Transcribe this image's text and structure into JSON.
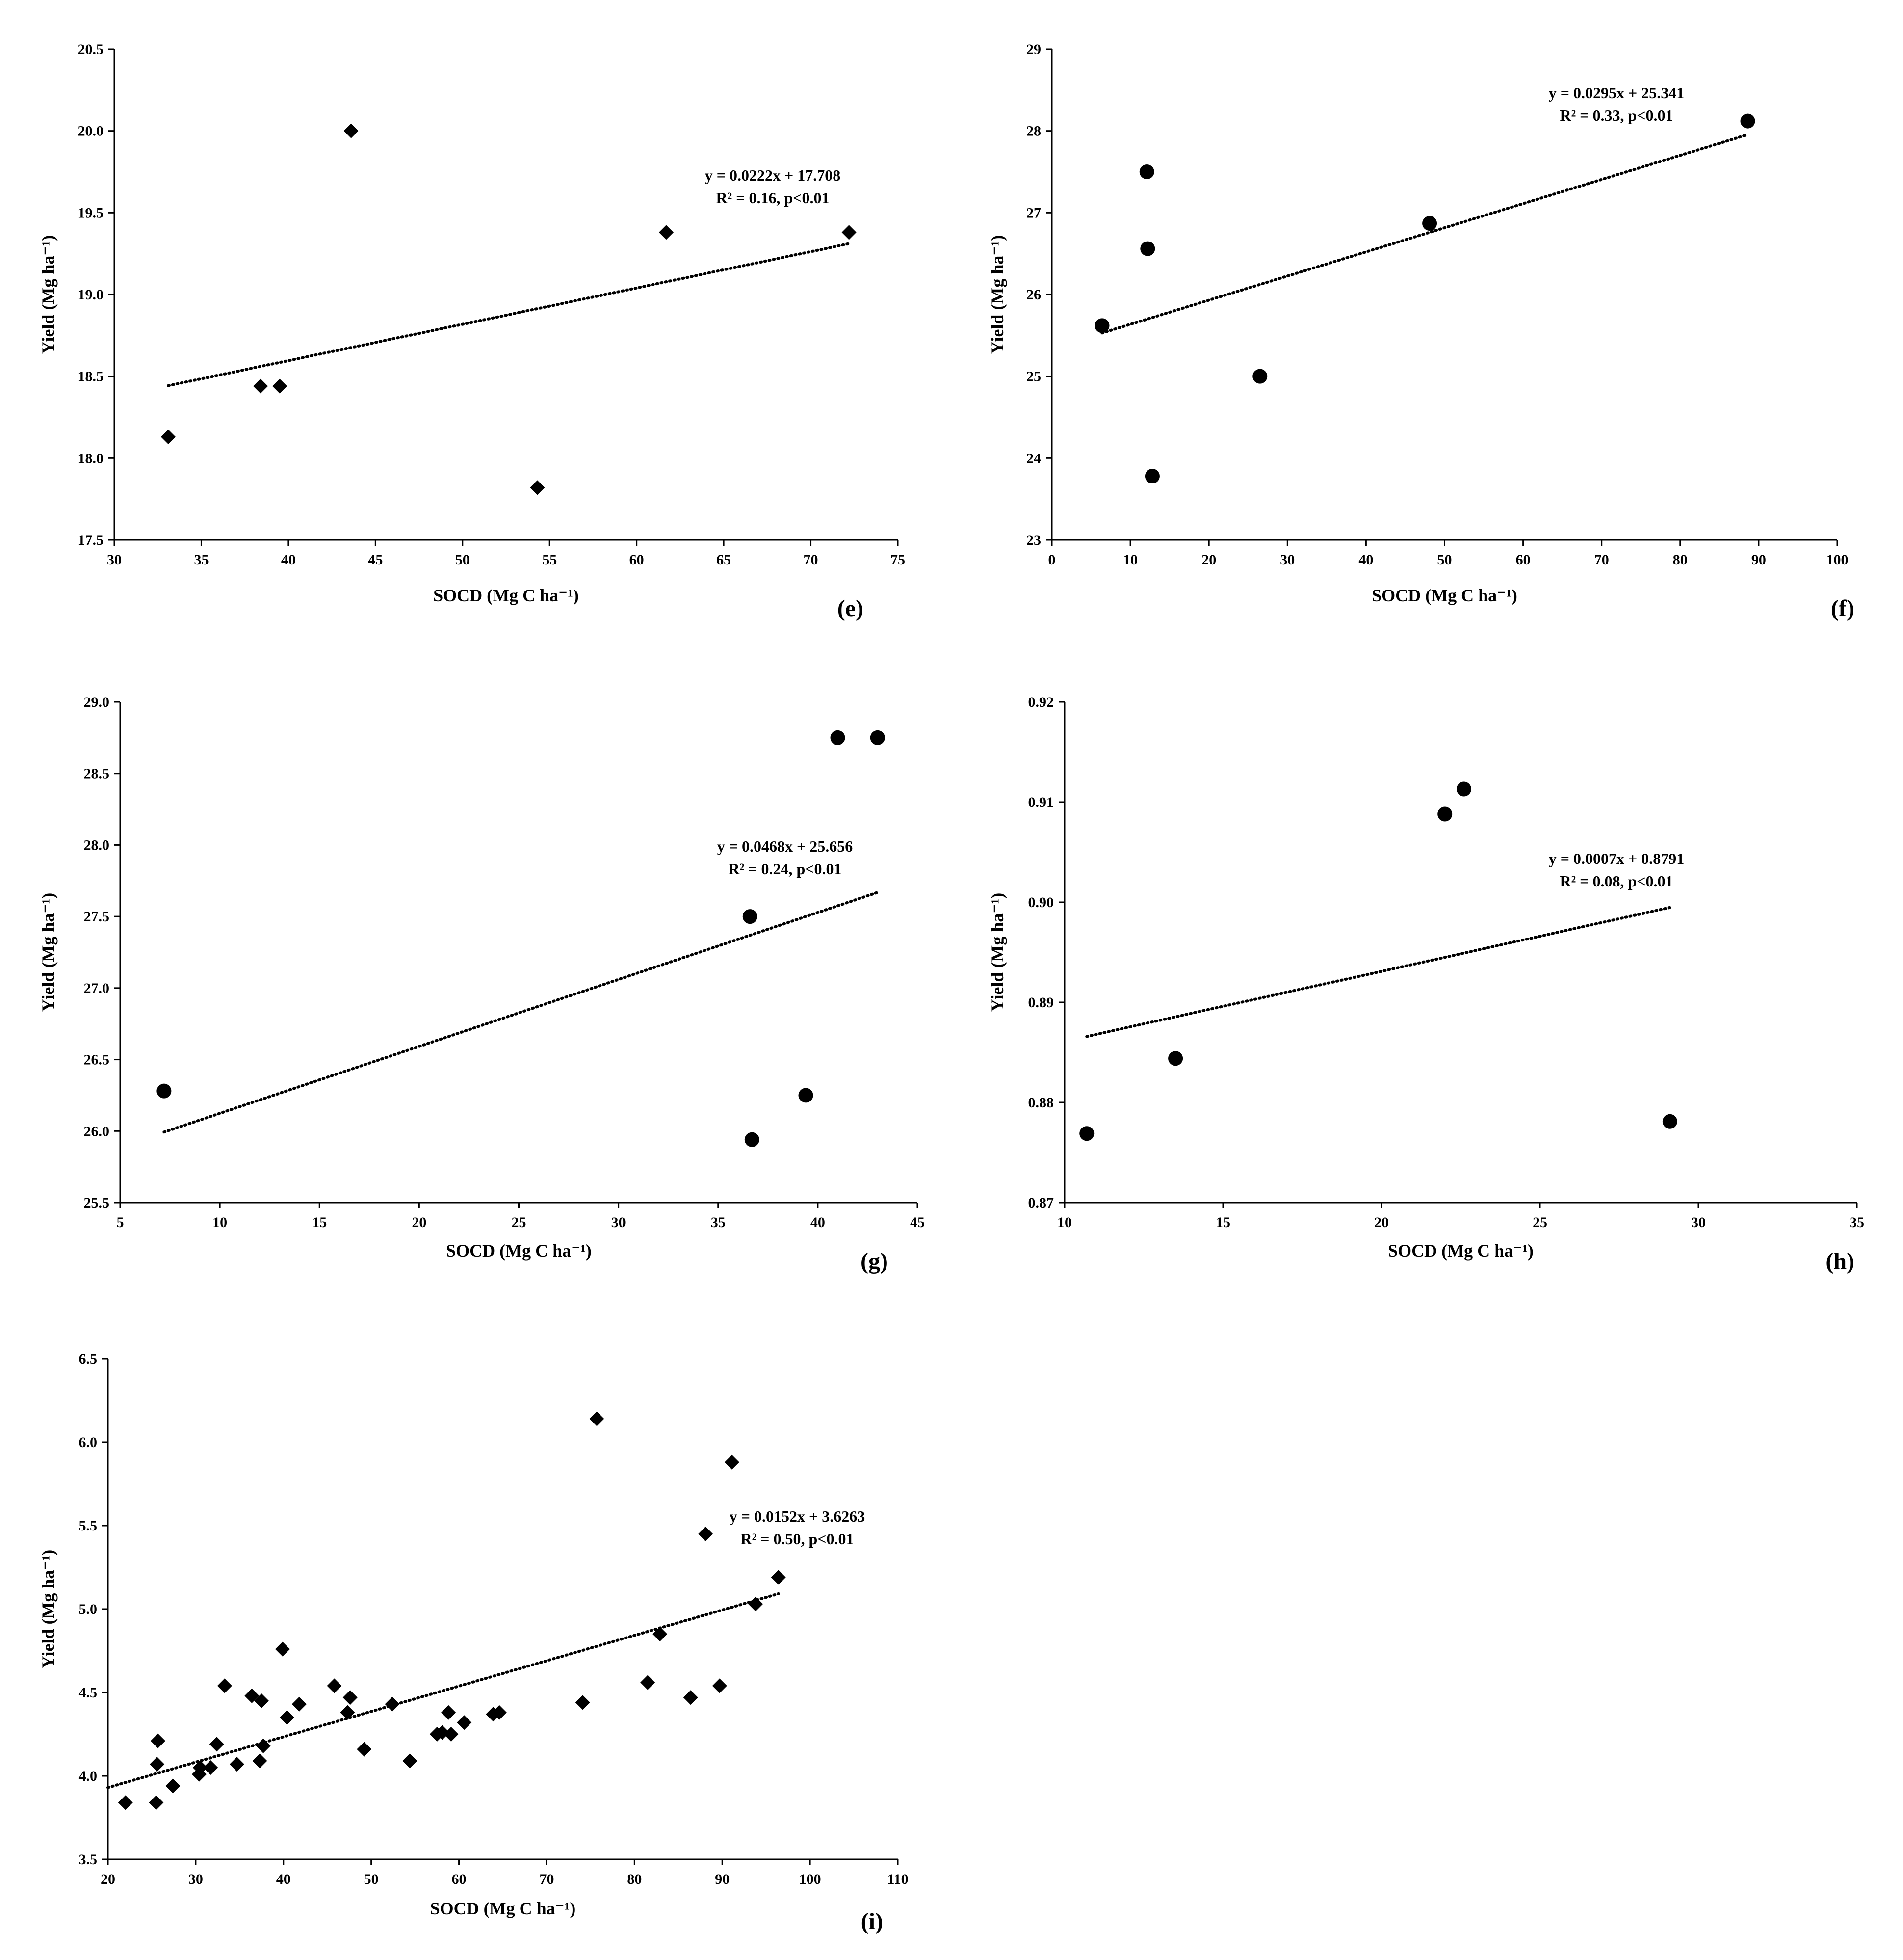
{
  "chart_data": [
    {
      "panel_label": "(e)",
      "type": "scatter",
      "marker": "diamond",
      "xlabel": "SOCD (Mg C ha⁻¹)",
      "ylabel": "Yield (Mg ha⁻¹)",
      "xlim": [
        30,
        75
      ],
      "ylim": [
        17.5,
        20.5
      ],
      "xticks": [
        30,
        35,
        40,
        45,
        50,
        55,
        60,
        65,
        70,
        75
      ],
      "yticks": [
        17.5,
        18.0,
        18.5,
        19.0,
        19.5,
        20.0,
        20.5
      ],
      "ydecimals": 1,
      "points": [
        [
          33.1,
          18.13
        ],
        [
          38.4,
          18.44
        ],
        [
          39.5,
          18.44
        ],
        [
          43.6,
          20.0
        ],
        [
          54.3,
          17.82
        ],
        [
          61.7,
          19.38
        ],
        [
          72.2,
          19.38
        ]
      ],
      "trendline": {
        "slope": 0.0222,
        "intercept": 17.708,
        "x_start": 33.1,
        "x_end": 72.2,
        "style": "dotted"
      },
      "equation_text": "y = 0.0222x + 17.708",
      "r2_text": "R² = 0.16, p<0.01"
    },
    {
      "panel_label": "(f)",
      "type": "scatter",
      "marker": "circle",
      "xlabel": "SOCD (Mg C ha⁻¹)",
      "ylabel": "Yield (Mg ha⁻¹)",
      "xlim": [
        0,
        100
      ],
      "ylim": [
        23,
        29
      ],
      "xticks": [
        0,
        10,
        20,
        30,
        40,
        50,
        60,
        70,
        80,
        90,
        100
      ],
      "yticks": [
        23,
        24,
        25,
        26,
        27,
        28,
        29
      ],
      "ydecimals": 0,
      "points": [
        [
          6.4,
          25.62
        ],
        [
          12.1,
          27.5
        ],
        [
          12.2,
          26.56
        ],
        [
          12.8,
          23.78
        ],
        [
          26.5,
          25.0
        ],
        [
          48.1,
          26.87
        ],
        [
          88.6,
          28.12
        ]
      ],
      "trendline": {
        "slope": 0.0295,
        "intercept": 25.341,
        "x_start": 6.4,
        "x_end": 88.6,
        "style": "dotted"
      },
      "equation_text": "y = 0.0295x + 25.341",
      "r2_text": "R² = 0.33, p<0.01"
    },
    {
      "panel_label": "(g)",
      "type": "scatter",
      "marker": "circle",
      "xlabel": "SOCD (Mg C ha⁻¹)",
      "ylabel": "Yield (Mg ha⁻¹)",
      "xlim": [
        5,
        45
      ],
      "ylim": [
        25.5,
        29.0
      ],
      "xticks": [
        5,
        10,
        15,
        20,
        25,
        30,
        35,
        40,
        45
      ],
      "yticks": [
        25.5,
        26.0,
        26.5,
        27.0,
        27.5,
        28.0,
        28.5,
        29.0
      ],
      "ydecimals": 1,
      "points": [
        [
          7.2,
          26.28
        ],
        [
          36.6,
          27.5
        ],
        [
          36.7,
          25.94
        ],
        [
          39.4,
          26.25
        ],
        [
          41.0,
          28.75
        ],
        [
          43.0,
          28.75
        ]
      ],
      "trendline": {
        "slope": 0.0468,
        "intercept": 25.656,
        "x_start": 7.2,
        "x_end": 43.0,
        "style": "dotted"
      },
      "equation_text": "y = 0.0468x + 25.656",
      "r2_text": "R² = 0.24, p<0.01"
    },
    {
      "panel_label": "(h)",
      "type": "scatter",
      "marker": "circle",
      "xlabel": "SOCD (Mg C ha⁻¹)",
      "ylabel": "Yield (Mg ha⁻¹)",
      "xlim": [
        10,
        35
      ],
      "ylim": [
        0.87,
        0.92
      ],
      "xticks": [
        10,
        15,
        20,
        25,
        30,
        35
      ],
      "yticks": [
        0.87,
        0.88,
        0.89,
        0.9,
        0.91,
        0.92
      ],
      "ydecimals": 2,
      "points": [
        [
          10.7,
          0.8769
        ],
        [
          13.5,
          0.8844
        ],
        [
          22.0,
          0.9088
        ],
        [
          22.6,
          0.9113
        ],
        [
          29.1,
          0.8781
        ]
      ],
      "trendline": {
        "slope": 0.0007,
        "intercept": 0.8791,
        "x_start": 10.7,
        "x_end": 29.1,
        "style": "dotted"
      },
      "equation_text": "y = 0.0007x + 0.8791",
      "r2_text": "R² = 0.08, p<0.01"
    },
    {
      "panel_label": "(i)",
      "type": "scatter",
      "marker": "diamond",
      "xlabel": "SOCD (Mg C ha⁻¹)",
      "ylabel": "Yield (Mg ha⁻¹)",
      "xlim": [
        20,
        110
      ],
      "ylim": [
        3.5,
        6.5
      ],
      "xticks": [
        20,
        30,
        40,
        50,
        60,
        70,
        80,
        90,
        100,
        110
      ],
      "yticks": [
        3.5,
        4.0,
        4.5,
        5.0,
        5.5,
        6.0,
        6.5
      ],
      "ydecimals": 1,
      "points": [
        [
          22.0,
          3.84
        ],
        [
          25.5,
          3.84
        ],
        [
          25.6,
          4.07
        ],
        [
          25.7,
          4.21
        ],
        [
          27.4,
          3.94
        ],
        [
          30.4,
          4.01
        ],
        [
          30.5,
          4.05
        ],
        [
          31.7,
          4.05
        ],
        [
          32.4,
          4.19
        ],
        [
          33.3,
          4.54
        ],
        [
          34.7,
          4.07
        ],
        [
          36.4,
          4.48
        ],
        [
          37.3,
          4.09
        ],
        [
          37.5,
          4.45
        ],
        [
          37.7,
          4.18
        ],
        [
          39.9,
          4.76
        ],
        [
          40.4,
          4.35
        ],
        [
          41.8,
          4.43
        ],
        [
          45.8,
          4.54
        ],
        [
          47.3,
          4.38
        ],
        [
          47.6,
          4.47
        ],
        [
          49.2,
          4.16
        ],
        [
          52.4,
          4.43
        ],
        [
          54.4,
          4.09
        ],
        [
          57.5,
          4.25
        ],
        [
          58.1,
          4.26
        ],
        [
          58.8,
          4.38
        ],
        [
          59.1,
          4.25
        ],
        [
          60.6,
          4.32
        ],
        [
          63.9,
          4.37
        ],
        [
          64.6,
          4.38
        ],
        [
          74.1,
          4.44
        ],
        [
          75.7,
          6.14
        ],
        [
          81.5,
          4.56
        ],
        [
          82.9,
          4.85
        ],
        [
          86.4,
          4.47
        ],
        [
          88.1,
          5.45
        ],
        [
          89.7,
          4.54
        ],
        [
          91.1,
          5.88
        ],
        [
          93.8,
          5.03
        ],
        [
          96.4,
          5.19
        ]
      ],
      "trendline": {
        "slope": 0.0152,
        "intercept": 3.6263,
        "x_start": 20,
        "x_end": 96.4,
        "style": "dotted"
      },
      "equation_text": "y = 0.0152x + 3.6263",
      "r2_text": "R² = 0.50, p<0.01"
    }
  ]
}
